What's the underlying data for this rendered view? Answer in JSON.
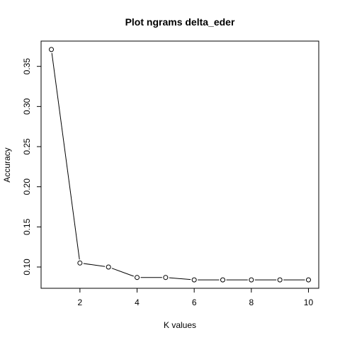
{
  "chart_data": {
    "type": "line",
    "title": "Plot ngrams delta_eder",
    "xlabel": "K values",
    "ylabel": "Accuracy",
    "x": [
      1,
      2,
      3,
      4,
      5,
      6,
      7,
      8,
      9,
      10
    ],
    "series": [
      {
        "values": [
          0.371,
          0.105,
          0.1,
          0.087,
          0.087,
          0.084,
          0.084,
          0.084,
          0.084,
          0.084
        ]
      }
    ],
    "xlim": [
      0.64,
      10.36
    ],
    "ylim": [
      0.0735,
      0.3815
    ],
    "xticks": [
      2,
      4,
      6,
      8,
      10
    ],
    "xtick_labels": [
      "2",
      "4",
      "6",
      "8",
      "10"
    ],
    "yticks": [
      0.1,
      0.15,
      0.2,
      0.25,
      0.3,
      0.35
    ],
    "ytick_labels": [
      "0.10",
      "0.15",
      "0.20",
      "0.25",
      "0.30",
      "0.35"
    ],
    "marker": "open-circle",
    "grid": false,
    "line_color": "#000000"
  }
}
